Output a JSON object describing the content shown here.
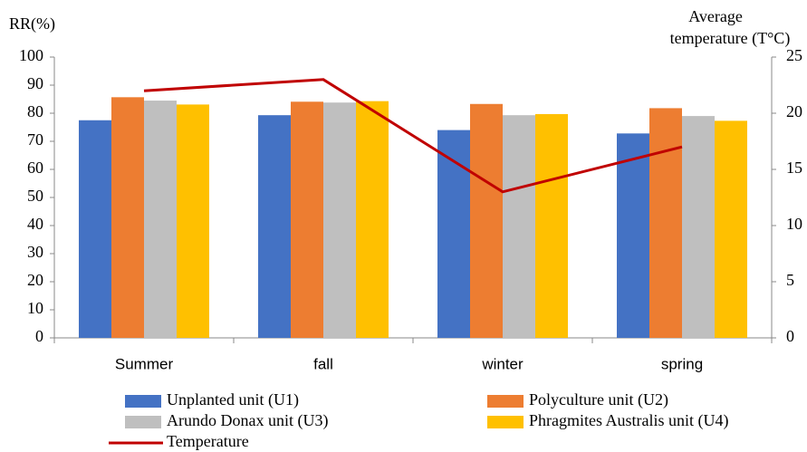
{
  "chart_data": {
    "type": "bar",
    "ylabel": "RR(%)",
    "y2label": [
      "Average",
      "temperature  (T°C)"
    ],
    "categories": [
      "Summer",
      "fall",
      "winter",
      "spring"
    ],
    "series": [
      {
        "name": "Unplanted unit (U1)",
        "color": "#4472c4",
        "values": [
          77.5,
          79.3,
          74,
          72.8
        ]
      },
      {
        "name": "Polyculture unit (U2)",
        "color": "#ed7d31",
        "values": [
          85.7,
          84.1,
          83.3,
          81.8
        ]
      },
      {
        "name": "Arundo Donax unit (U3)",
        "color": "#bfbfbf",
        "values": [
          84.5,
          83.8,
          79.3,
          79
        ]
      },
      {
        "name": "Phragmites Australis unit (U4)",
        "color": "#ffc000",
        "values": [
          83.1,
          84.3,
          79.7,
          77.3
        ]
      },
      {
        "name": "Temperature",
        "color": "#c00000",
        "type": "line",
        "axis": "y2",
        "values": [
          22,
          23,
          13,
          17
        ]
      }
    ],
    "ylim": [
      0,
      100
    ],
    "yticks": [
      0,
      10,
      20,
      30,
      40,
      50,
      60,
      70,
      80,
      90,
      100
    ],
    "y2lim": [
      0,
      25
    ],
    "y2ticks": [
      0,
      5,
      10,
      15,
      20,
      25
    ]
  }
}
